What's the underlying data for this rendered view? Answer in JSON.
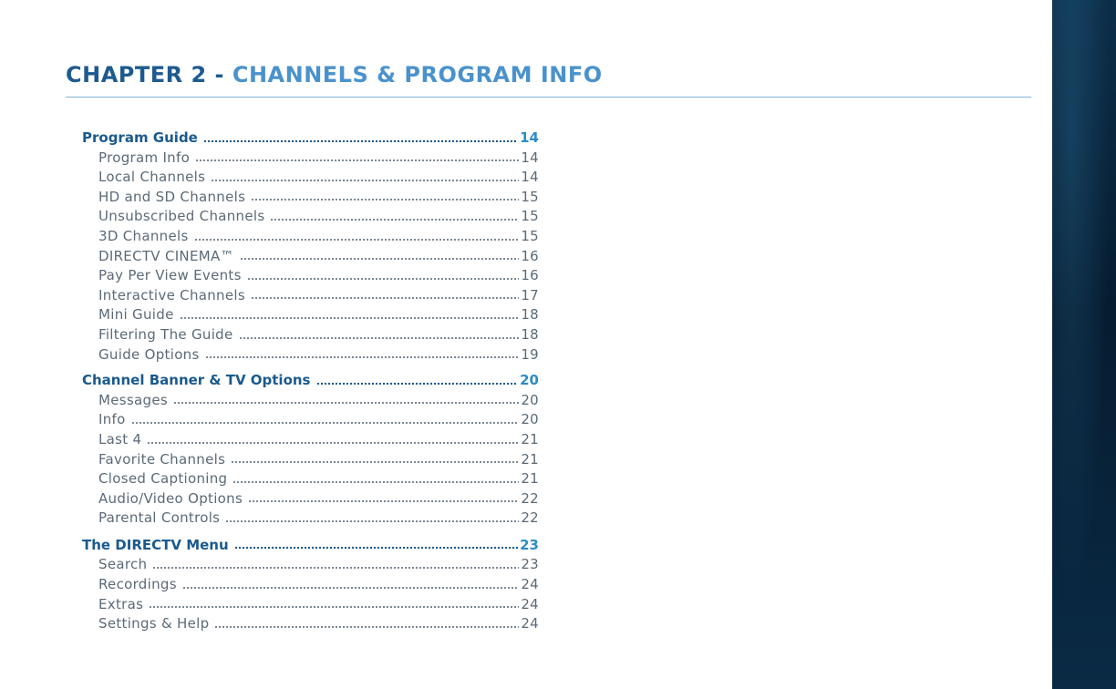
{
  "chapter": {
    "prefix": "CHAPTER 2 - ",
    "title": "CHANNELS & PROGRAM INFO"
  },
  "toc": [
    {
      "heading": "Program Guide",
      "page": "14",
      "items": [
        {
          "label": "Program Info",
          "page": "14"
        },
        {
          "label": "Local Channels",
          "page": "14"
        },
        {
          "label": "HD and SD Channels",
          "page": "15"
        },
        {
          "label": "Unsubscribed Channels",
          "page": "15"
        },
        {
          "label": "3D Channels",
          "page": "15"
        },
        {
          "label": "DIRECTV CINEMA™",
          "page": "16"
        },
        {
          "label": "Pay Per View Events",
          "page": "16"
        },
        {
          "label": "Interactive Channels",
          "page": "17"
        },
        {
          "label": "Mini Guide",
          "page": "18"
        },
        {
          "label": "Filtering The Guide",
          "page": "18"
        },
        {
          "label": "Guide Options",
          "page": "19"
        }
      ]
    },
    {
      "heading": "Channel Banner & TV Options",
      "page": "20",
      "items": [
        {
          "label": "Messages",
          "page": "20"
        },
        {
          "label": "Info",
          "page": "20"
        },
        {
          "label": "Last 4",
          "page": "21"
        },
        {
          "label": "Favorite Channels",
          "page": "21"
        },
        {
          "label": "Closed Captioning",
          "page": "21"
        },
        {
          "label": "Audio/Video Options",
          "page": "22"
        },
        {
          "label": "Parental Controls",
          "page": "22"
        }
      ]
    },
    {
      "heading": "The DIRECTV Menu",
      "page": "23",
      "items": [
        {
          "label": "Search",
          "page": "23"
        },
        {
          "label": "Recordings",
          "page": "24"
        },
        {
          "label": "Extras",
          "page": "24"
        },
        {
          "label": "Settings & Help",
          "page": "24"
        }
      ]
    }
  ]
}
